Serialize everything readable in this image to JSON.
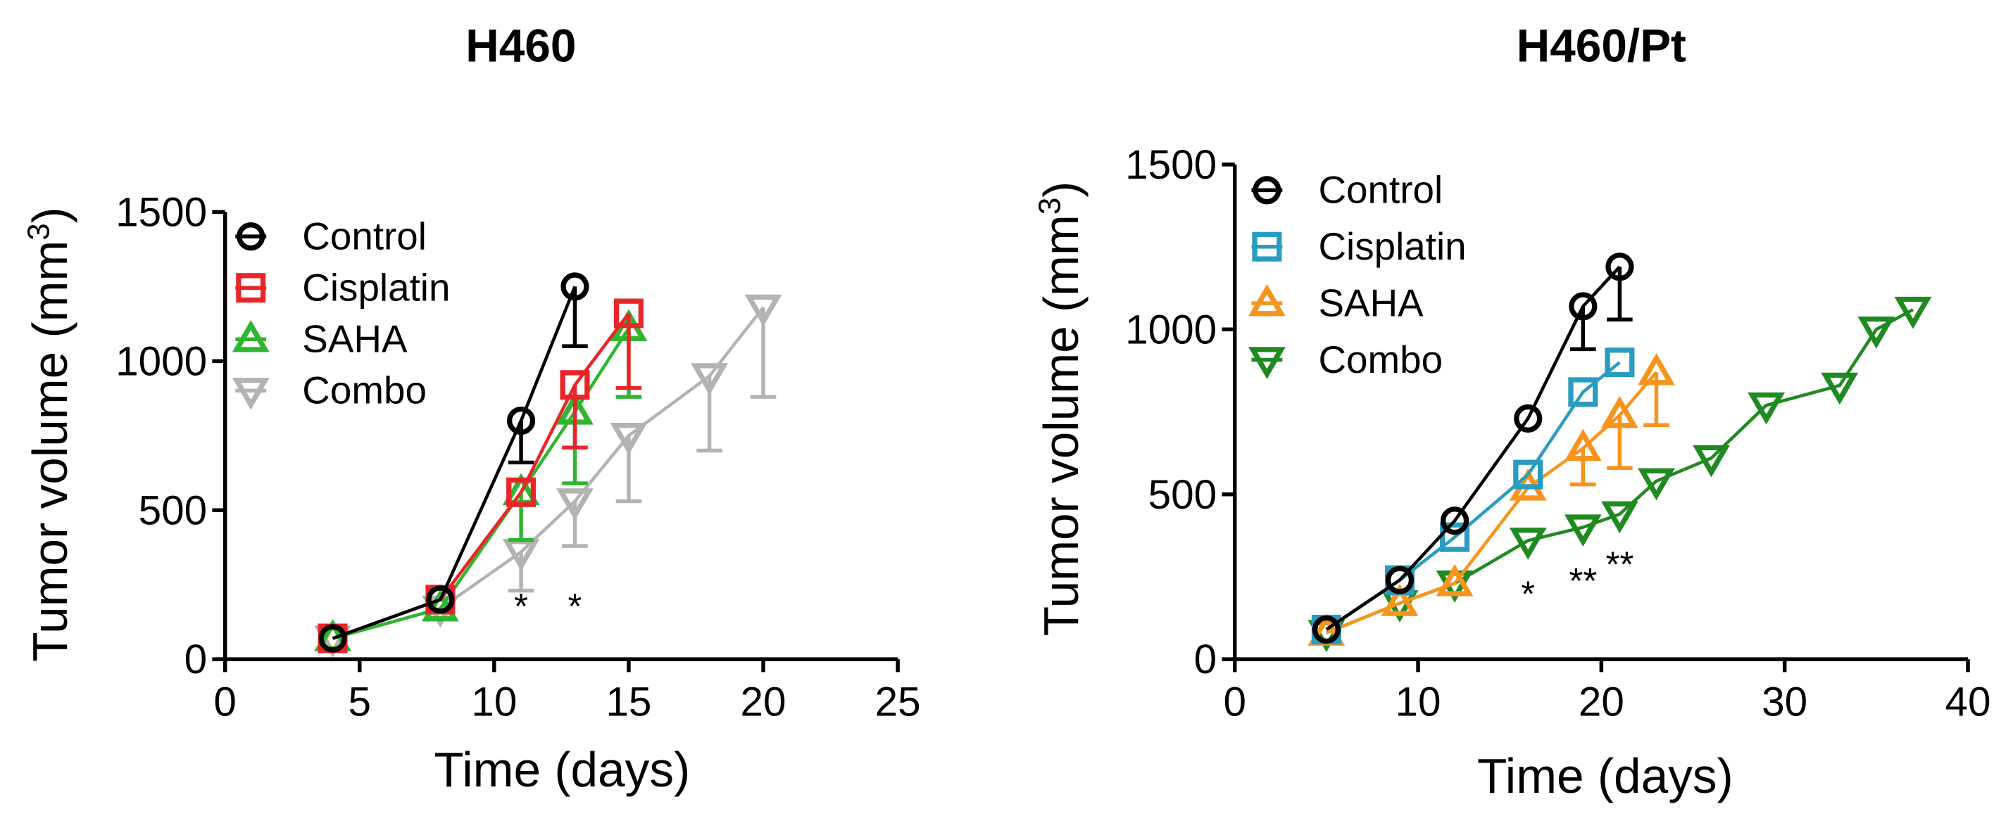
{
  "chart_data": [
    {
      "type": "line",
      "title": "H460",
      "xlabel": "Time (days)",
      "ylabel_main": "Tumor volume (mm",
      "ylabel_sup": "3",
      "ylabel_close": ")",
      "xlim": [
        0,
        25
      ],
      "ylim": [
        0,
        1500
      ],
      "xticks": [
        "0",
        "5",
        "10",
        "15",
        "20",
        "25"
      ],
      "yticks": [
        "0",
        "500",
        "1000",
        "1500"
      ],
      "series": [
        {
          "name": "Control",
          "color": "#000000",
          "marker": "circle",
          "x": [
            4,
            8,
            11,
            13
          ],
          "y": [
            70,
            200,
            800,
            1250
          ],
          "err": [
            0,
            0,
            140,
            200
          ],
          "err_dir": "down"
        },
        {
          "name": "Cisplatin",
          "color": "#e8262a",
          "marker": "square",
          "x": [
            4,
            8,
            11,
            13,
            15
          ],
          "y": [
            70,
            200,
            560,
            920,
            1160
          ],
          "err": [
            0,
            0,
            0,
            210,
            250
          ],
          "err_dir": "down"
        },
        {
          "name": "SAHA",
          "color": "#2fb52f",
          "marker": "triangle-up",
          "x": [
            4,
            8,
            11,
            13,
            15
          ],
          "y": [
            70,
            170,
            560,
            830,
            1110
          ],
          "err": [
            0,
            0,
            160,
            240,
            230
          ],
          "err_dir": "down"
        },
        {
          "name": "Combo",
          "color": "#b3b3b3",
          "marker": "triangle-down",
          "x": [
            4,
            8,
            11,
            13,
            15,
            18,
            20
          ],
          "y": [
            70,
            170,
            360,
            530,
            750,
            950,
            1180
          ],
          "err": [
            0,
            0,
            130,
            150,
            220,
            250,
            300
          ],
          "err_dir": "down"
        }
      ],
      "annotations": [
        {
          "text": "*",
          "x": 11,
          "y": 180
        },
        {
          "text": "*",
          "x": 13,
          "y": 180
        }
      ]
    },
    {
      "type": "line",
      "title": "H460/Pt",
      "xlabel": "Time (days)",
      "ylabel_main": "Tumor volume (mm",
      "ylabel_sup": "3",
      "ylabel_close": ")",
      "xlim": [
        0,
        40
      ],
      "ylim": [
        0,
        1500
      ],
      "xticks": [
        "0",
        "10",
        "20",
        "30",
        "40"
      ],
      "yticks": [
        "0",
        "500",
        "1000",
        "1500"
      ],
      "series": [
        {
          "name": "Control",
          "color": "#000000",
          "marker": "circle",
          "x": [
            5,
            9,
            12,
            16,
            19,
            21
          ],
          "y": [
            90,
            240,
            420,
            730,
            1070,
            1190
          ],
          "err": [
            0,
            0,
            0,
            0,
            130,
            160
          ],
          "err_dir": "down"
        },
        {
          "name": "Cisplatin",
          "color": "#2a9cc0",
          "marker": "square",
          "x": [
            5,
            9,
            12,
            16,
            19,
            21
          ],
          "y": [
            90,
            240,
            370,
            560,
            810,
            900
          ],
          "err": [
            0,
            0,
            0,
            0,
            0,
            0
          ],
          "err_dir": "down"
        },
        {
          "name": "SAHA",
          "color": "#f7941d",
          "marker": "triangle-up",
          "x": [
            5,
            9,
            12,
            16,
            19,
            21,
            23
          ],
          "y": [
            80,
            170,
            230,
            520,
            640,
            740,
            870
          ],
          "err": [
            0,
            0,
            0,
            0,
            110,
            160,
            160
          ],
          "err_dir": "down"
        },
        {
          "name": "Combo",
          "color": "#1f8a1f",
          "marker": "triangle-down",
          "x": [
            5,
            9,
            12,
            16,
            19,
            21,
            23,
            26,
            29,
            33,
            35,
            37
          ],
          "y": [
            80,
            170,
            230,
            360,
            400,
            440,
            540,
            610,
            770,
            830,
            1000,
            1060
          ],
          "err": [
            0,
            0,
            0,
            0,
            0,
            0,
            0,
            0,
            0,
            0,
            0,
            0
          ],
          "err_dir": "down"
        }
      ],
      "annotations": [
        {
          "text": "*",
          "x": 16,
          "y": 200
        },
        {
          "text": "**",
          "x": 19,
          "y": 240
        },
        {
          "text": "**",
          "x": 21,
          "y": 290
        }
      ]
    }
  ]
}
